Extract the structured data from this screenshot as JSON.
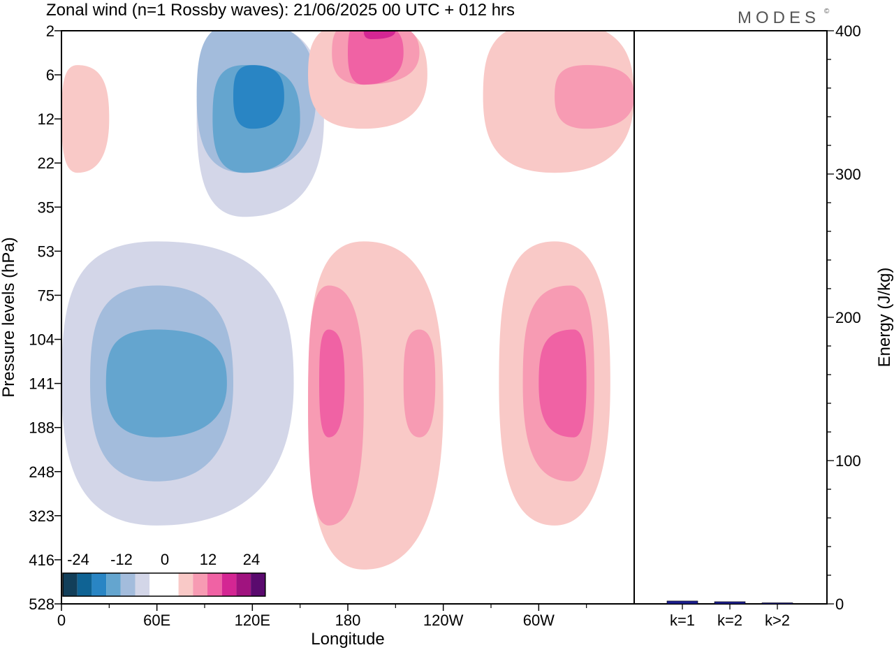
{
  "title": "Zonal wind (n=1 Rossby waves):  21/06/2025  00 UTC  + 012 hrs",
  "logo": {
    "text": "MODES",
    "mark": "©"
  },
  "chart_data": [
    {
      "type": "heatmap",
      "xlabel": "Longitude",
      "ylabel": "Pressure levels (hPa)",
      "x_ticks": [
        "0",
        "60E",
        "120E",
        "180",
        "120W",
        "60W"
      ],
      "x_tick_values": [
        0,
        60,
        120,
        180,
        240,
        300
      ],
      "xlim": [
        0,
        360
      ],
      "y_ticks": [
        "2",
        "6",
        "12",
        "22",
        "35",
        "53",
        "75",
        "104",
        "141",
        "188",
        "248",
        "323",
        "416",
        "528"
      ],
      "colorbar": {
        "tick_labels": [
          "-24",
          "-12",
          "0",
          "12",
          "24"
        ],
        "colors": [
          "#123f5a",
          "#0f6394",
          "#2985c4",
          "#64a5cf",
          "#a3bcdc",
          "#d3d6e8",
          "#ffffff",
          "#ffffff",
          "#f9c9c7",
          "#f79bb3",
          "#f062a4",
          "#d42693",
          "#a0137f",
          "#5a0a6e"
        ]
      },
      "regions": [
        {
          "sign": "negative",
          "level": 1,
          "color": "#d3d6e8",
          "x": [
            85,
            115,
            165
          ],
          "y_range": [
            "2",
            "35"
          ]
        },
        {
          "sign": "negative",
          "level": 2,
          "color": "#a3bcdc",
          "x": [
            85,
            115,
            160
          ],
          "y_range": [
            "2",
            "22"
          ]
        },
        {
          "sign": "negative",
          "level": 3,
          "color": "#64a5cf",
          "x": [
            95,
            115,
            150
          ],
          "y_range": [
            "6",
            "22"
          ]
        },
        {
          "sign": "negative",
          "level": 4,
          "color": "#2985c4",
          "x": [
            108,
            120,
            140
          ],
          "y_range": [
            "6",
            "12"
          ]
        },
        {
          "sign": "negative",
          "level": 1,
          "color": "#d3d6e8",
          "x": [
            0,
            60,
            146
          ],
          "y_range": [
            "53",
            "323"
          ]
        },
        {
          "sign": "negative",
          "level": 2,
          "color": "#a3bcdc",
          "x": [
            18,
            60,
            108
          ],
          "y_range": [
            "75",
            "248"
          ]
        },
        {
          "sign": "negative",
          "level": 3,
          "color": "#64a5cf",
          "x": [
            28,
            60,
            104
          ],
          "y_range": [
            "104",
            "188"
          ]
        },
        {
          "sign": "positive",
          "level": 1,
          "color": "#f9c9c7",
          "x": [
            155,
            190,
            240
          ],
          "y_range": [
            "53",
            "416"
          ]
        },
        {
          "sign": "positive",
          "level": 2,
          "color": "#f79bb3",
          "x": [
            155,
            168,
            190
          ],
          "y_range": [
            "75",
            "323"
          ]
        },
        {
          "sign": "positive",
          "level": 3,
          "color": "#f062a4",
          "x": [
            162,
            168,
            178
          ],
          "y_range": [
            "104",
            "188"
          ]
        },
        {
          "sign": "positive",
          "level": 2,
          "color": "#f79bb3",
          "x": [
            215,
            225,
            235
          ],
          "y_range": [
            "104",
            "188"
          ]
        },
        {
          "sign": "positive",
          "level": 1,
          "color": "#f9c9c7",
          "x": [
            275,
            310,
            345
          ],
          "y_range": [
            "53",
            "323"
          ]
        },
        {
          "sign": "positive",
          "level": 2,
          "color": "#f79bb3",
          "x": [
            290,
            320,
            335
          ],
          "y_range": [
            "75",
            "248"
          ]
        },
        {
          "sign": "positive",
          "level": 3,
          "color": "#f062a4",
          "x": [
            300,
            322,
            330
          ],
          "y_range": [
            "104",
            "188"
          ]
        },
        {
          "sign": "positive",
          "level": 1,
          "color": "#f9c9c7",
          "x": [
            265,
            310,
            360
          ],
          "y_range": [
            "2",
            "22"
          ]
        },
        {
          "sign": "positive",
          "level": 2,
          "color": "#f79bb3",
          "x": [
            310,
            330,
            360
          ],
          "y_range": [
            "6",
            "12"
          ]
        },
        {
          "sign": "positive",
          "level": 1,
          "color": "#f9c9c7",
          "x": [
            155,
            190,
            230
          ],
          "y_range": [
            "2",
            "12"
          ]
        },
        {
          "sign": "positive",
          "level": 2,
          "color": "#f79bb3",
          "x": [
            170,
            190,
            225
          ],
          "y_range": [
            "2",
            "6"
          ]
        },
        {
          "sign": "positive",
          "level": 3,
          "color": "#f062a4",
          "x": [
            180,
            190,
            215
          ],
          "y_range": [
            "2",
            "6"
          ]
        },
        {
          "sign": "positive",
          "level": 4,
          "color": "#d42693",
          "x": [
            190,
            195,
            210
          ],
          "y_range": [
            "2",
            "2"
          ]
        },
        {
          "sign": "positive",
          "level": 1,
          "color": "#f9c9c7",
          "x": [
            0,
            10,
            30
          ],
          "y_range": [
            "6",
            "22"
          ]
        }
      ]
    },
    {
      "type": "bar",
      "categories": [
        "k=1",
        "k=2",
        "k>2"
      ],
      "values": [
        2,
        1.5,
        0.5
      ],
      "ylabel": "Energy (J/kg)",
      "ylim": [
        0,
        400
      ],
      "y_ticks": [
        "0",
        "100",
        "200",
        "300",
        "400"
      ],
      "bar_color": "#1c1f8f"
    }
  ]
}
